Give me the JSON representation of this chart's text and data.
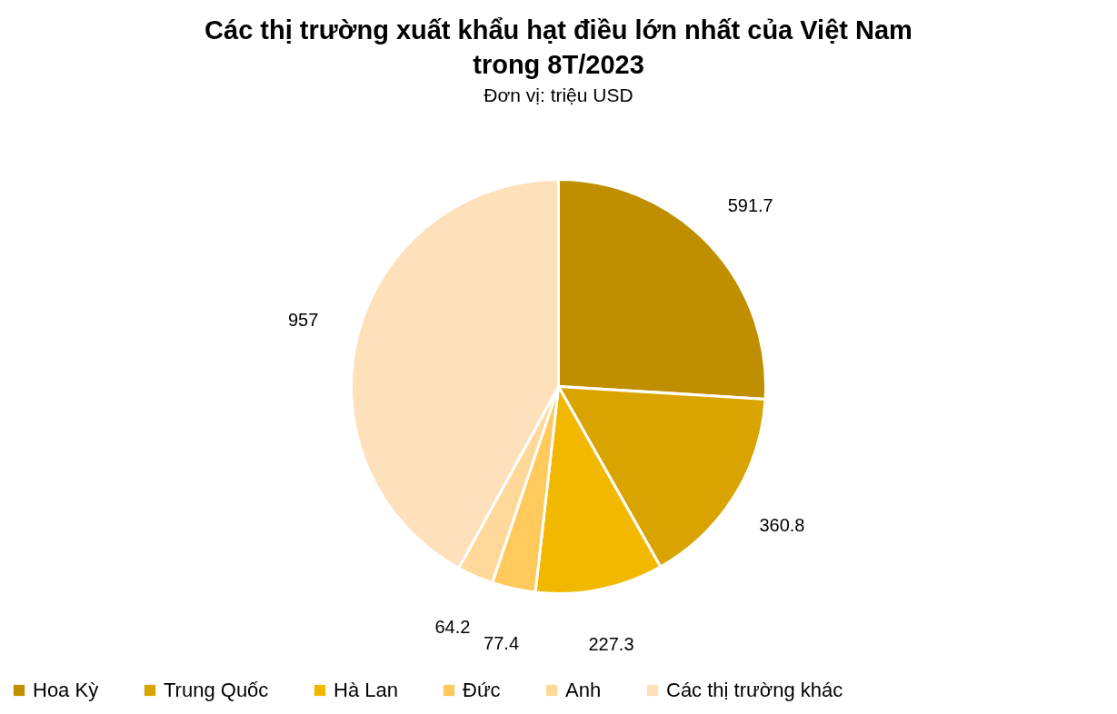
{
  "chart_data": {
    "type": "pie",
    "title": "Các thị trường xuất khẩu hạt điều lớn nhất của Việt Nam trong 8T/2023",
    "subtitle": "Đơn vị: triệu USD",
    "categories": [
      "Hoa Kỳ",
      "Trung Quốc",
      "Hà Lan",
      "Đức",
      "Anh",
      "Các thị trường khác"
    ],
    "values": [
      591.7,
      360.8,
      227.3,
      77.4,
      64.2,
      957
    ],
    "colors": [
      "#bf8f00",
      "#d9a400",
      "#f2b800",
      "#ffc95c",
      "#ffd89a",
      "#fee0ba"
    ],
    "data_labels": true,
    "legend": "bottom"
  }
}
